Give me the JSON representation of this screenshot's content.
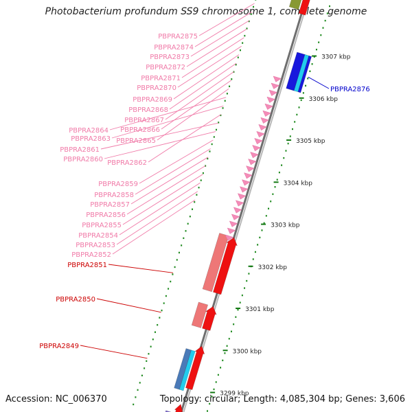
{
  "title": "Photobacterium profundum SS9 chromosome 1, complete genome",
  "footer": {
    "accession": "Accession: NC_006370",
    "summary": "Topology: circular; Length: 4,085,304 bp; Genes: 3,606"
  },
  "colors": {
    "backbone": "#8a8a8a",
    "tick": "#1f8a1f",
    "pink_label": "#f07aa8",
    "red_label": "#cc0000",
    "blue_label": "#0000cc",
    "red_gene": "#ee1111",
    "salmon_gene": "#ee7777",
    "blue_gene": "#1818dd",
    "cyan_gene": "#22ccee",
    "steel_gene": "#4a7ab8",
    "purple_gene": "#7a66cc",
    "olive_gene": "#889933"
  },
  "kbp_labels": [
    "3299 kbp",
    "3300 kbp",
    "3301 kbp",
    "3302 kbp",
    "3303 kbp",
    "3304 kbp",
    "3305 kbp",
    "3306 kbp",
    "3307 kbp"
  ],
  "pink_genes": [
    "PBPRA2875",
    "PBPRA2874",
    "PBPRA2873",
    "PBPRA2872",
    "PBPRA2871",
    "PBPRA2870",
    "PBPRA2869",
    "PBPRA2868",
    "PBPRA2867",
    "PBPRA2866",
    "PBPRA2865",
    "PBPRA2864",
    "PBPRA2863",
    "PBPRA2862",
    "PBPRA2861",
    "PBPRA2860",
    "PBPRA2859",
    "PBPRA2858",
    "PBPRA2857",
    "PBPRA2856",
    "PBPRA2855",
    "PBPRA2854",
    "PBPRA2853",
    "PBPRA2852"
  ],
  "red_genes": [
    "PBPRA2851",
    "PBPRA2850",
    "PBPRA2849"
  ],
  "blue_genes": [
    "PBPRA2876"
  ]
}
